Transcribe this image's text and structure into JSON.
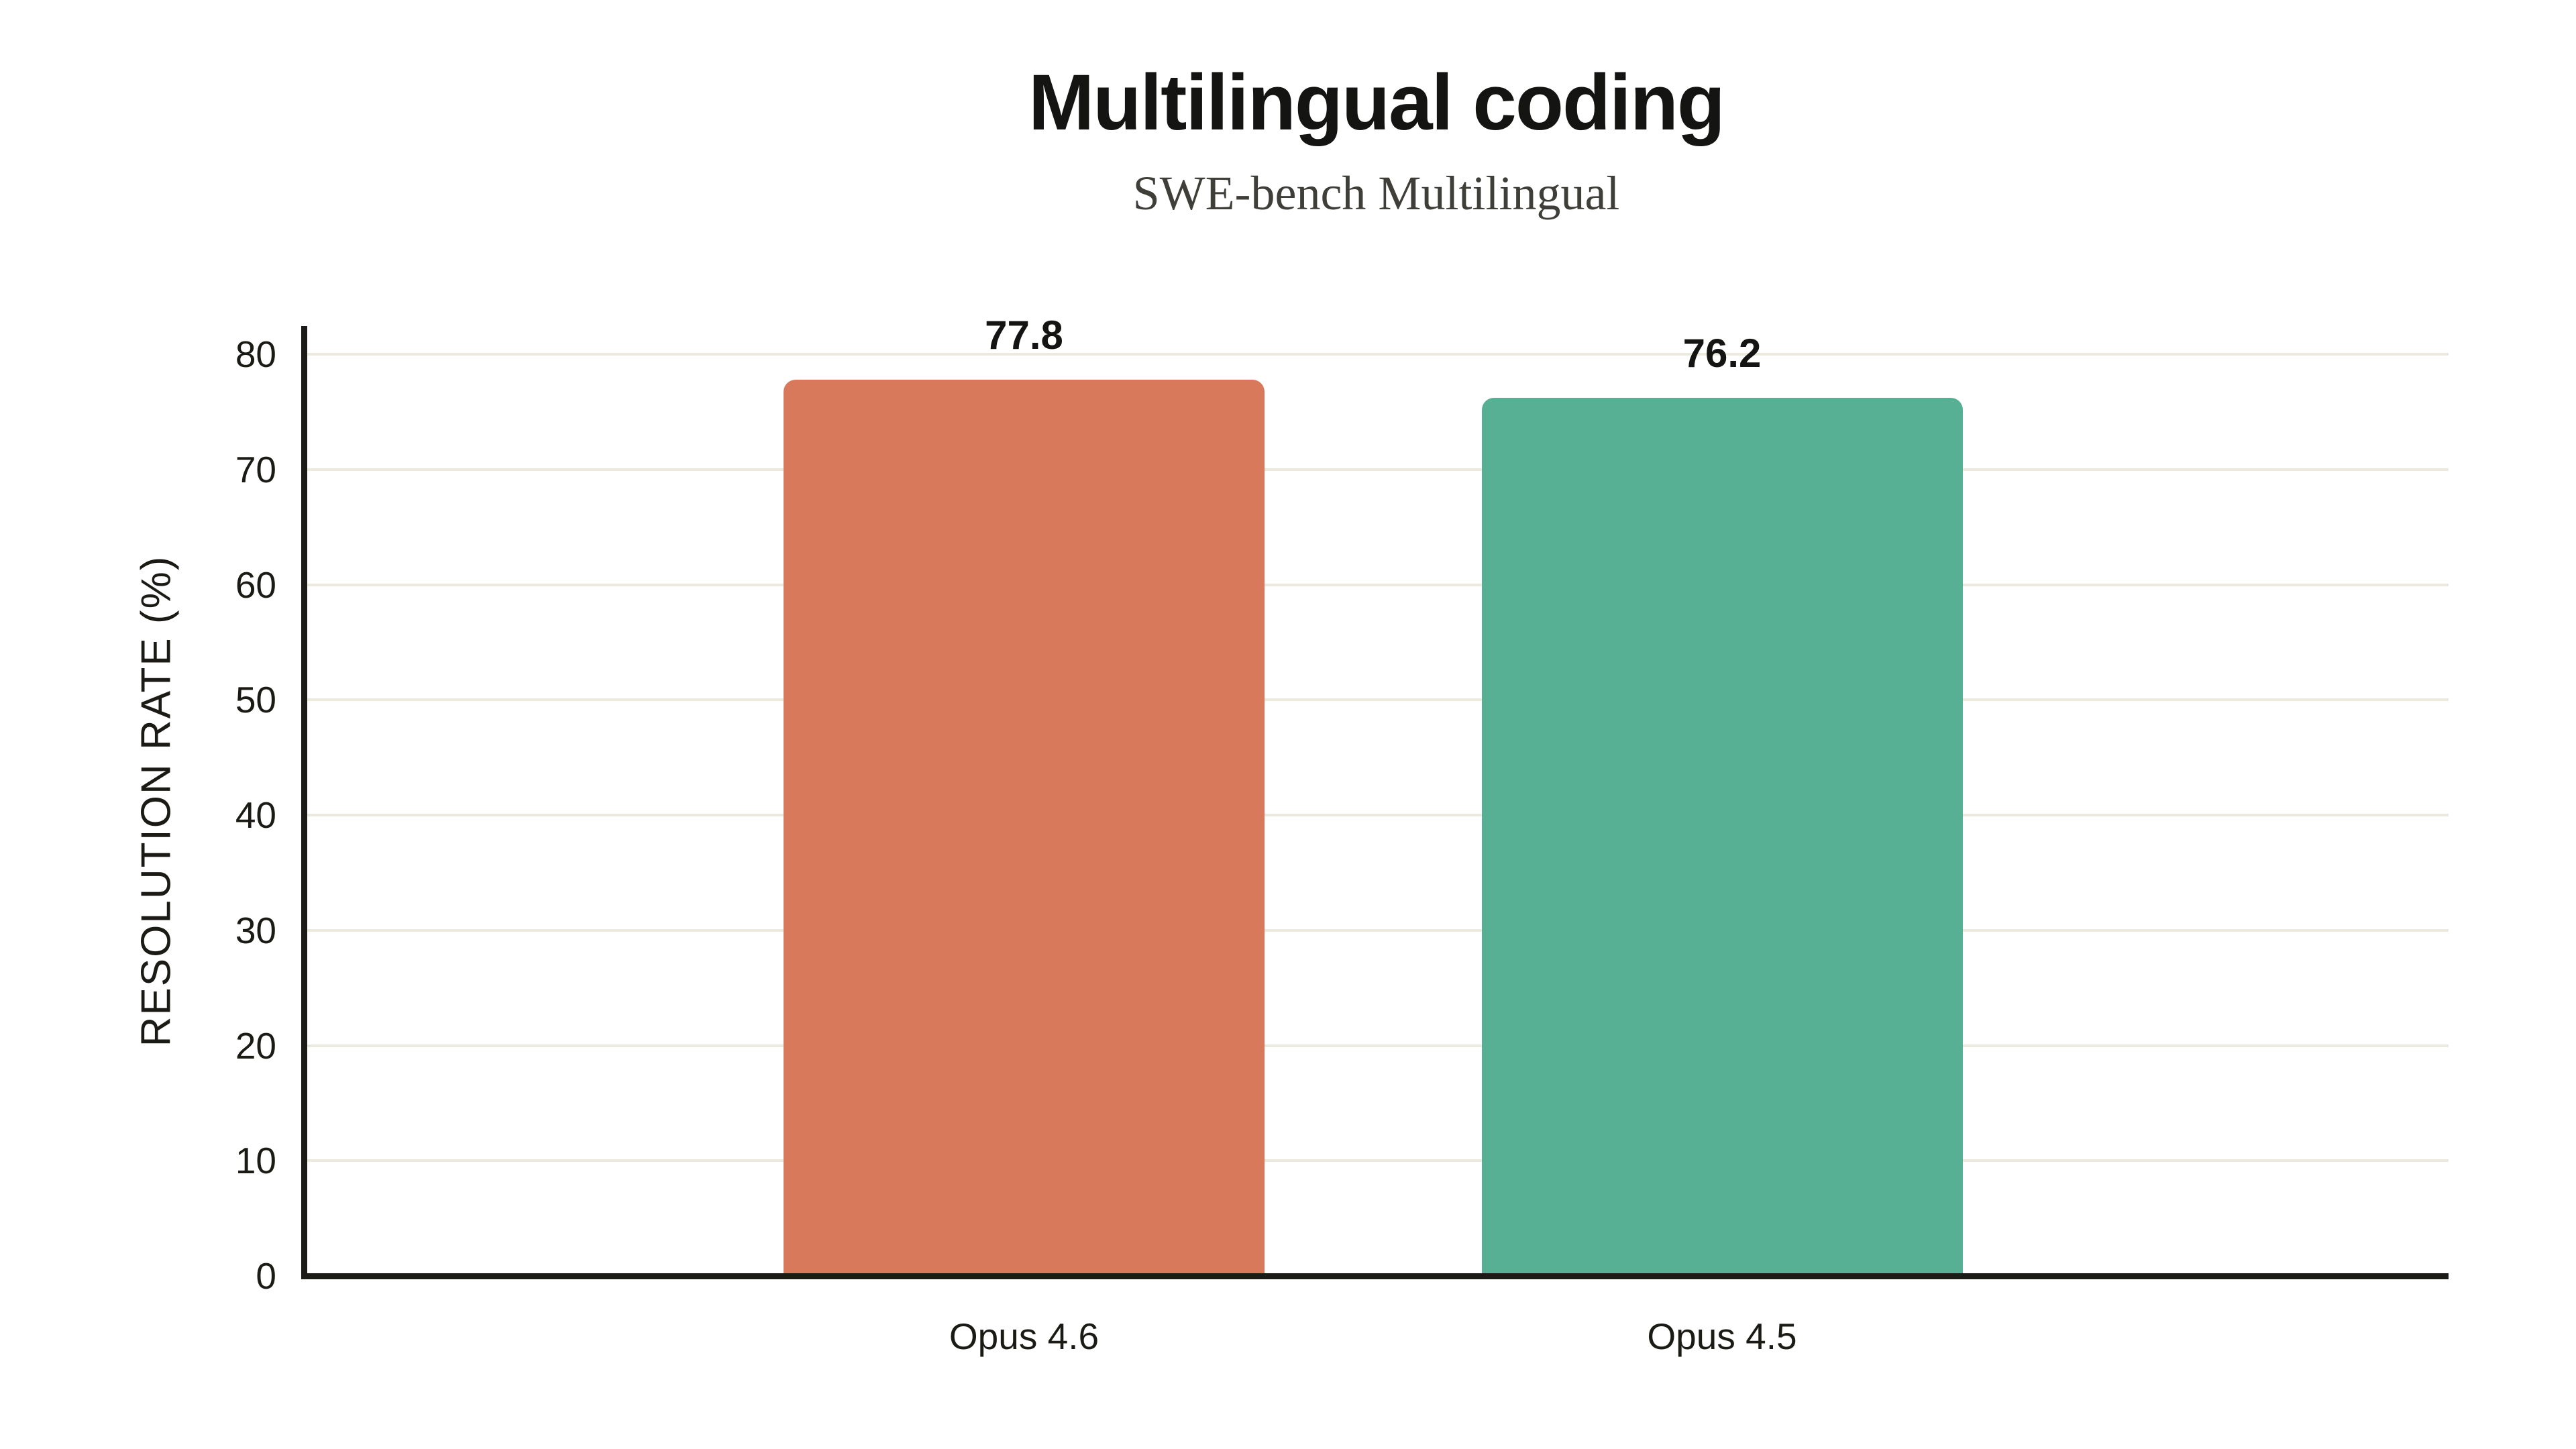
{
  "chart_data": {
    "type": "bar",
    "title": "Multilingual coding",
    "subtitle": "SWE-bench Multilingual",
    "ylabel": "RESOLUTION RATE (%)",
    "xlabel": "",
    "categories": [
      "Opus 4.6",
      "Opus 4.5"
    ],
    "values": [
      77.8,
      76.2
    ],
    "value_labels": [
      "77.8",
      "76.2"
    ],
    "bar_colors": [
      "#d7795a",
      "#57b094"
    ],
    "yticks": [
      0,
      10,
      20,
      30,
      40,
      50,
      60,
      70,
      80
    ],
    "ylim": [
      0,
      80
    ],
    "grid": "horizontal-only",
    "legend": "none"
  },
  "colors": {
    "background": "#ffffff",
    "axis": "#1c1b18",
    "gridline": "#ece9df",
    "title_text": "#141413",
    "subtitle_text": "#403e39",
    "tick_text": "#1b1a15",
    "value_label_text": "#141413"
  }
}
